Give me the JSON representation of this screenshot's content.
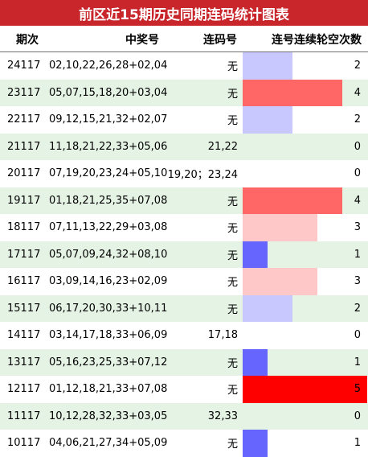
{
  "title": "前区近15期历史同期连码统计图表",
  "headers": {
    "period": "期次",
    "winning": "中奖号",
    "sequential": "连码号",
    "skip": "连号连续轮空次数"
  },
  "colors": {
    "title_bg": "#c8262b",
    "alt_row": "#e5f3e5",
    "skip_1": "#6666ff",
    "skip_2": "#c8c8ff",
    "skip_3": "#ffc8c8",
    "skip_4": "#ff6666",
    "skip_5": "#ff0000"
  },
  "max_skip": 5,
  "rows": [
    {
      "period": "24117",
      "winning": "02,10,22,26,28+02,04",
      "sequential": "无",
      "skip": "2"
    },
    {
      "period": "23117",
      "winning": "05,07,15,18,20+03,04",
      "sequential": "无",
      "skip": "4"
    },
    {
      "period": "22117",
      "winning": "09,12,15,21,32+02,07",
      "sequential": "无",
      "skip": "2"
    },
    {
      "period": "21117",
      "winning": "11,18,21,22,33+05,06",
      "sequential": "21,22",
      "skip": "0"
    },
    {
      "period": "20117",
      "winning": "07,19,20,23,24+05,10",
      "sequential": "19,20；23,24",
      "skip": "0"
    },
    {
      "period": "19117",
      "winning": "01,18,21,25,35+07,08",
      "sequential": "无",
      "skip": "4"
    },
    {
      "period": "18117",
      "winning": "07,11,13,22,29+03,08",
      "sequential": "无",
      "skip": "3"
    },
    {
      "period": "17117",
      "winning": "05,07,09,24,32+08,10",
      "sequential": "无",
      "skip": "1"
    },
    {
      "period": "16117",
      "winning": "03,09,14,16,23+02,09",
      "sequential": "无",
      "skip": "3"
    },
    {
      "period": "15117",
      "winning": "06,17,20,30,33+10,11",
      "sequential": "无",
      "skip": "2"
    },
    {
      "period": "14117",
      "winning": "03,14,17,18,33+06,09",
      "sequential": "17,18",
      "skip": "0"
    },
    {
      "period": "13117",
      "winning": "05,16,23,25,33+07,12",
      "sequential": "无",
      "skip": "1"
    },
    {
      "period": "12117",
      "winning": "01,12,18,21,33+07,08",
      "sequential": "无",
      "skip": "5"
    },
    {
      "period": "11117",
      "winning": "10,12,28,32,33+03,05",
      "sequential": "32,33",
      "skip": "0"
    },
    {
      "period": "10117",
      "winning": "04,06,21,27,34+05,09",
      "sequential": "无",
      "skip": "1"
    }
  ]
}
